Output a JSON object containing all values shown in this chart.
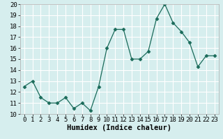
{
  "x": [
    0,
    1,
    2,
    3,
    4,
    5,
    6,
    7,
    8,
    9,
    10,
    11,
    12,
    13,
    14,
    15,
    16,
    17,
    18,
    19,
    20,
    21,
    22,
    23
  ],
  "y": [
    12.5,
    13.0,
    11.5,
    11.0,
    11.0,
    11.5,
    10.5,
    11.0,
    10.3,
    12.5,
    16.0,
    17.7,
    17.7,
    15.0,
    15.0,
    15.7,
    18.7,
    20.0,
    18.3,
    17.5,
    16.5,
    14.3,
    15.3,
    15.3
  ],
  "xlabel": "Humidex (Indice chaleur)",
  "xlim": [
    -0.5,
    23.5
  ],
  "ylim": [
    10,
    20
  ],
  "yticks": [
    10,
    11,
    12,
    13,
    14,
    15,
    16,
    17,
    18,
    19,
    20
  ],
  "xticks": [
    0,
    1,
    2,
    3,
    4,
    5,
    6,
    7,
    8,
    9,
    10,
    11,
    12,
    13,
    14,
    15,
    16,
    17,
    18,
    19,
    20,
    21,
    22,
    23
  ],
  "line_color": "#1a6b5a",
  "marker": "D",
  "marker_size": 2.5,
  "bg_color": "#d6eeee",
  "grid_color": "#ffffff",
  "tick_fontsize": 6.5,
  "xlabel_fontsize": 7.5
}
